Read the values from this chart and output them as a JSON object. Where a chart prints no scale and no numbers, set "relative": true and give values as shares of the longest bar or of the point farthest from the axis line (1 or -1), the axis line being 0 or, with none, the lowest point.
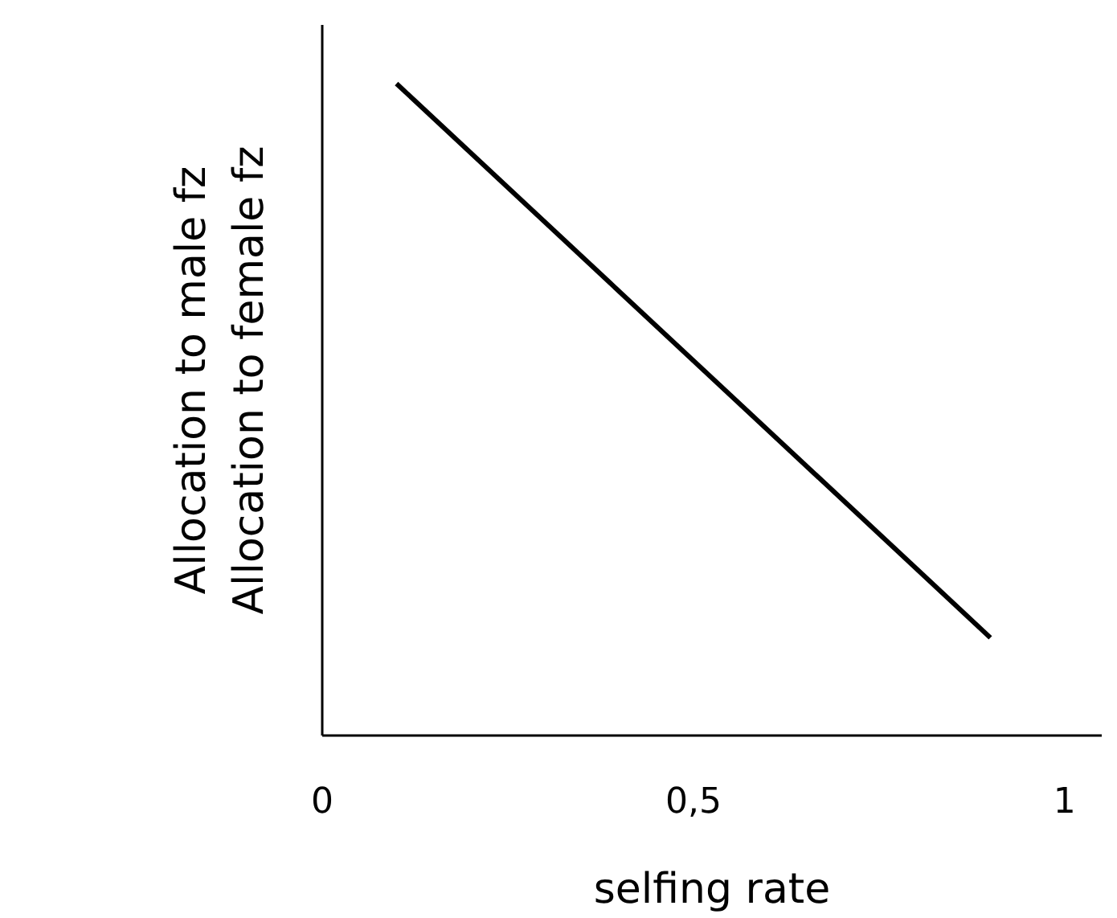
{
  "chart_data": {
    "type": "line",
    "relative": true,
    "xlabel": "selfing rate",
    "ylabel": "Allocation to male fz\nAllocation to female fz",
    "x": [
      0.1,
      0.9
    ],
    "series": [
      {
        "color": "#000000",
        "values": [
          1,
          0.15
        ]
      }
    ],
    "xlim": [
      0,
      1.05
    ],
    "xticks": [
      0,
      {
        "value": 0.5,
        "label": "0,5"
      },
      1
    ],
    "grid": false,
    "tick_labels": "x"
  }
}
